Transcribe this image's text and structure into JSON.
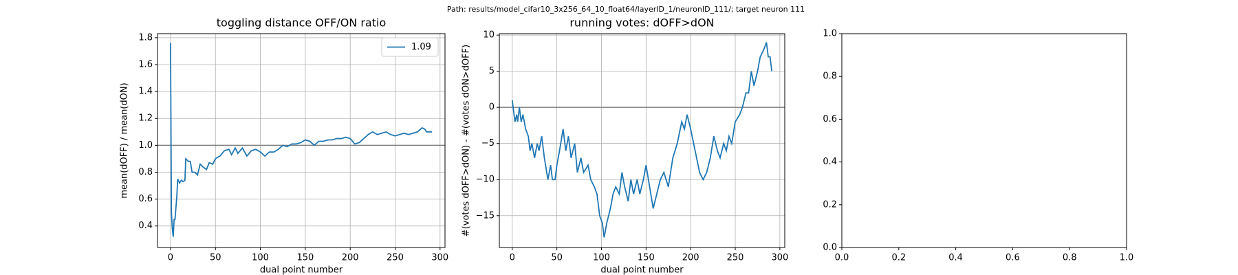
{
  "figure_title": "Path: results/model_cifar10_3x256_64_10_float64/layerID_1/neuronID_111/; target neuron 111",
  "chart_data": [
    {
      "type": "line",
      "title": "toggling distance OFF/ON ratio",
      "xlabel": "dual point number",
      "ylabel": "mean(dOFF) / mean(dON)",
      "x": [
        0,
        1,
        2,
        3,
        4,
        5,
        7,
        8,
        10,
        12,
        14,
        16,
        17,
        20,
        22,
        24,
        27,
        30,
        33,
        36,
        40,
        43,
        47,
        50,
        55,
        60,
        65,
        68,
        72,
        75,
        80,
        85,
        90,
        95,
        100,
        105,
        110,
        115,
        120,
        125,
        130,
        135,
        140,
        145,
        150,
        155,
        160,
        165,
        170,
        175,
        180,
        185,
        190,
        195,
        200,
        205,
        210,
        215,
        220,
        225,
        230,
        235,
        240,
        245,
        250,
        255,
        260,
        265,
        270,
        275,
        280,
        283,
        285,
        291
      ],
      "series": [
        {
          "name": "1.09",
          "color": "#1f77b4",
          "values": [
            1.76,
            0.5,
            0.38,
            0.32,
            0.45,
            0.45,
            0.62,
            0.75,
            0.72,
            0.74,
            0.73,
            0.74,
            0.9,
            0.88,
            0.88,
            0.8,
            0.8,
            0.78,
            0.86,
            0.84,
            0.82,
            0.87,
            0.86,
            0.9,
            0.92,
            0.96,
            0.97,
            0.93,
            0.98,
            0.94,
            0.98,
            0.92,
            0.96,
            0.97,
            0.95,
            0.92,
            0.95,
            0.95,
            0.97,
            1.0,
            0.99,
            1.01,
            1.01,
            1.02,
            1.04,
            1.03,
            1.0,
            1.03,
            1.03,
            1.04,
            1.04,
            1.05,
            1.05,
            1.06,
            1.05,
            1.01,
            1.02,
            1.05,
            1.08,
            1.1,
            1.08,
            1.09,
            1.1,
            1.08,
            1.07,
            1.08,
            1.09,
            1.08,
            1.09,
            1.1,
            1.13,
            1.12,
            1.1,
            1.1
          ]
        }
      ],
      "hline": 1,
      "hline_color": "#808080",
      "xlim": [
        -14.5,
        305.5
      ],
      "xticks": [
        0,
        50,
        100,
        150,
        200,
        250,
        300
      ],
      "ylim": [
        0.24,
        1.83
      ],
      "yticks": [
        0.4,
        0.6,
        0.8,
        {
          "value": 1,
          "label": "1.0"
        },
        1.2,
        1.4,
        1.6,
        1.8
      ],
      "grid": true,
      "legend": "upper-right"
    },
    {
      "type": "line",
      "title": "running votes: dOFF>dON",
      "xlabel": "dual point number",
      "ylabel": "#(votes dOFF>dON) - #(votes dON>dOFF)",
      "x": [
        0,
        2,
        3,
        5,
        6,
        8,
        10,
        12,
        15,
        18,
        20,
        22,
        25,
        28,
        30,
        33,
        36,
        40,
        43,
        45,
        48,
        50,
        53,
        57,
        60,
        63,
        66,
        70,
        73,
        77,
        80,
        85,
        88,
        92,
        95,
        98,
        101,
        103,
        106,
        110,
        113,
        116,
        120,
        123,
        126,
        130,
        133,
        136,
        140,
        143,
        147,
        150,
        154,
        158,
        162,
        166,
        170,
        175,
        180,
        185,
        190,
        193,
        196,
        200,
        205,
        210,
        214,
        218,
        222,
        226,
        230,
        233,
        237,
        240,
        243,
        246,
        250,
        255,
        258,
        262,
        265,
        268,
        271,
        275,
        278,
        282,
        285,
        287,
        289,
        291
      ],
      "series": [
        {
          "name": "votes",
          "color": "#1f77b4",
          "values": [
            1,
            -1,
            -2,
            -1,
            -2,
            0,
            -2,
            -1,
            -3,
            -4,
            -6,
            -5,
            -7,
            -5,
            -6,
            -4,
            -7,
            -10,
            -8,
            -10,
            -10,
            -8,
            -6,
            -3,
            -6,
            -4,
            -7,
            -5,
            -9,
            -7,
            -9,
            -8,
            -10,
            -11,
            -12,
            -15,
            -16,
            -18,
            -16,
            -14,
            -12,
            -11,
            -12,
            -9,
            -11,
            -13,
            -10,
            -12,
            -10,
            -12,
            -10,
            -8,
            -11,
            -14,
            -12,
            -10,
            -9,
            -11,
            -7,
            -5,
            -2,
            -3,
            -1,
            -3,
            -6,
            -9,
            -10,
            -9,
            -7,
            -4,
            -6,
            -7,
            -5,
            -6,
            -4,
            -5,
            -2,
            -1,
            0,
            2,
            2,
            5,
            3,
            5,
            7,
            8,
            9,
            7,
            7,
            5
          ]
        }
      ],
      "hline": 0,
      "hline_color": "#808080",
      "xlim": [
        -14.5,
        305.5
      ],
      "xticks": [
        0,
        50,
        100,
        150,
        200,
        250,
        300
      ],
      "ylim": [
        -19.4,
        10.2
      ],
      "yticks": [
        {
          "value": -15,
          "label": "−15"
        },
        {
          "value": -10,
          "label": "−10"
        },
        {
          "value": -5,
          "label": "−5"
        },
        0,
        5,
        10
      ],
      "grid": true
    },
    {
      "type": "line",
      "xlim": [
        0,
        1
      ],
      "xticks": [
        {
          "value": 0,
          "label": "0.0"
        },
        0.2,
        0.4,
        0.6,
        0.8,
        {
          "value": 1,
          "label": "1.0"
        }
      ],
      "ylim": [
        0,
        1
      ],
      "yticks": [
        {
          "value": 0,
          "label": "0.0"
        },
        0.2,
        0.4,
        0.6,
        0.8,
        {
          "value": 1,
          "label": "1.0"
        }
      ],
      "grid": false
    }
  ]
}
